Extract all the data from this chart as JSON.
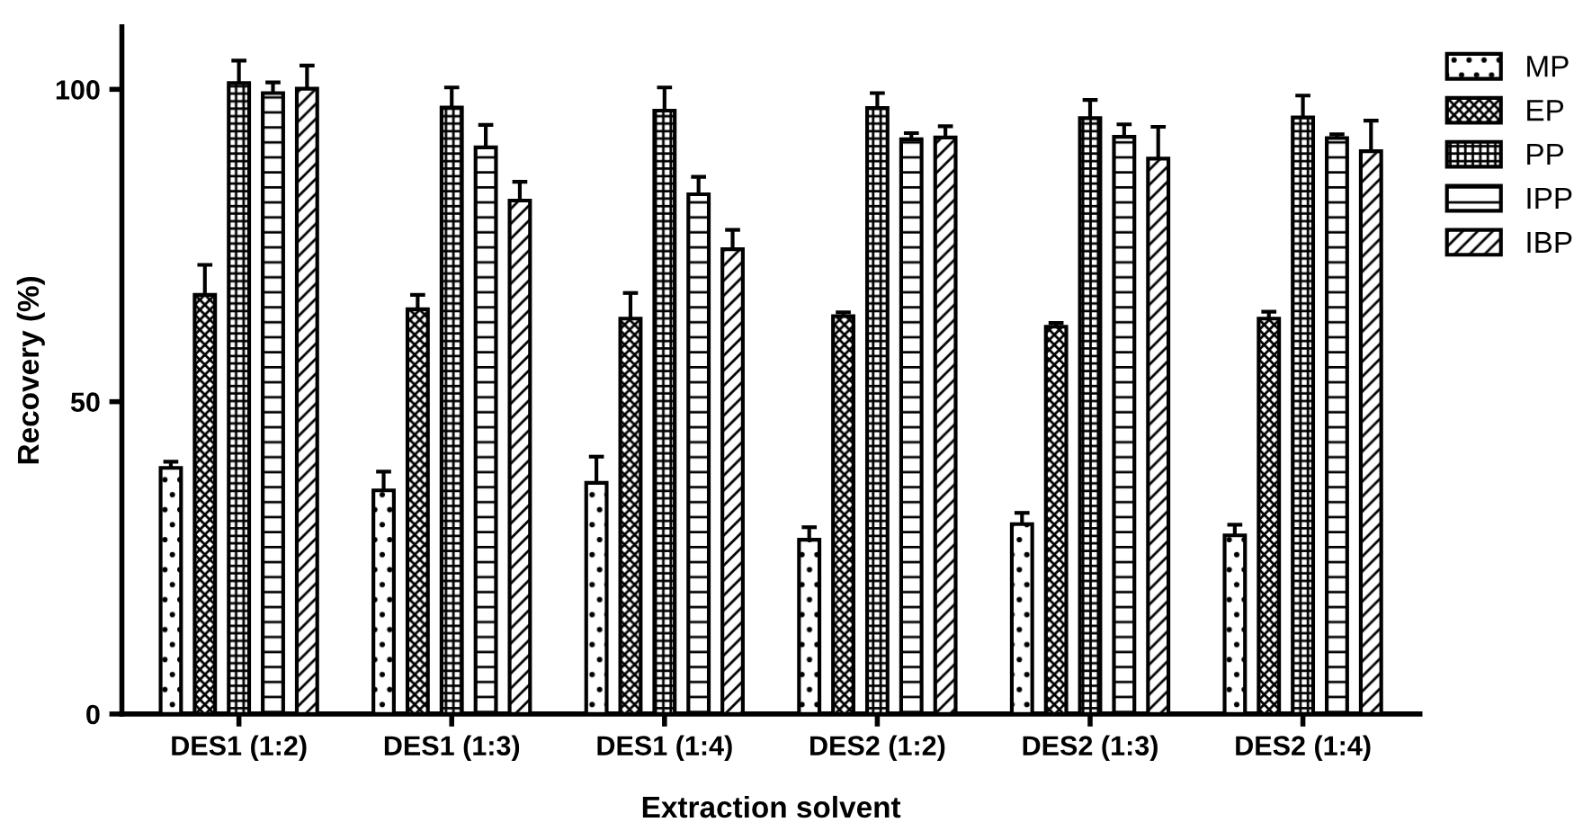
{
  "chart_data": {
    "type": "bar",
    "xlabel": "Extraction solvent",
    "ylabel": "Recovery (%)",
    "categories": [
      "DES1 (1:2)",
      "DES1 (1:3)",
      "DES1 (1:4)",
      "DES2 (1:2)",
      "DES2 (1:3)",
      "DES2 (1:4)"
    ],
    "series": [
      {
        "name": "MP",
        "color": "#000000",
        "values": [
          39.4,
          35.8,
          37.0,
          27.9,
          30.4,
          28.6
        ],
        "errors": [
          1.0,
          3.0,
          4.2,
          2.0,
          1.8,
          1.7
        ]
      },
      {
        "name": "EP",
        "color": "#000000",
        "values": [
          67.1,
          64.8,
          63.3,
          63.7,
          62.0,
          63.3
        ],
        "errors": [
          4.8,
          2.3,
          4.1,
          0.6,
          0.6,
          1.1
        ]
      },
      {
        "name": "PP",
        "color": "#000000",
        "values": [
          101.0,
          97.1,
          96.6,
          97.0,
          95.4,
          95.5
        ],
        "errors": [
          3.6,
          3.2,
          3.7,
          2.4,
          2.9,
          3.5
        ]
      },
      {
        "name": "IPP",
        "color": "#000000",
        "values": [
          99.4,
          90.7,
          83.2,
          92.0,
          92.4,
          92.2
        ],
        "errors": [
          1.7,
          3.6,
          2.8,
          1.0,
          2.0,
          0.6
        ]
      },
      {
        "name": "IBP",
        "color": "#000000",
        "values": [
          100.1,
          82.2,
          74.4,
          92.3,
          88.9,
          90.1
        ],
        "errors": [
          3.7,
          3.0,
          3.1,
          1.8,
          5.1,
          4.9
        ]
      }
    ],
    "ylim": [
      0,
      110
    ],
    "yticks": [
      0,
      50,
      100
    ],
    "grid": false,
    "legend": "right"
  }
}
